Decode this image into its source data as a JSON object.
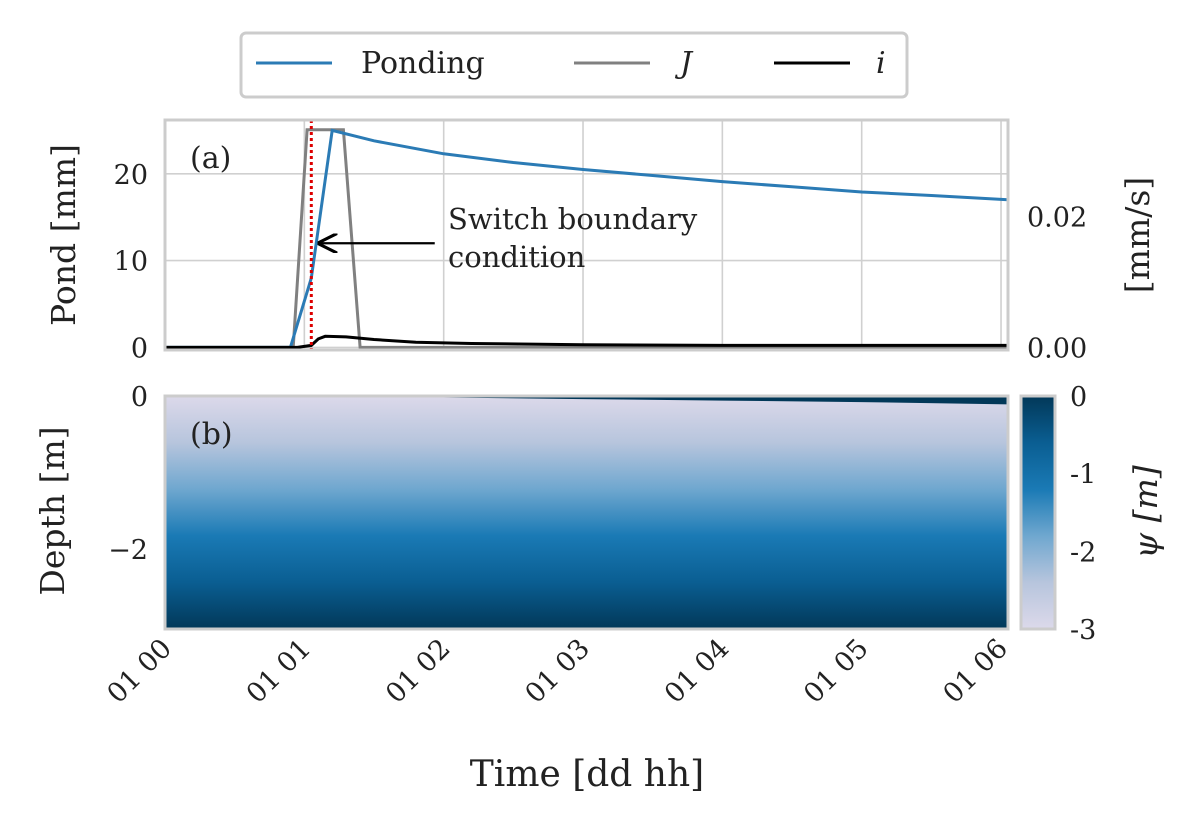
{
  "legend": {
    "items": [
      {
        "label": "Ponding",
        "color": "#2b7bb5",
        "italic": false
      },
      {
        "label": "J",
        "color": "#808080",
        "italic": true
      },
      {
        "label": "i",
        "color": "#000000",
        "italic": true
      }
    ]
  },
  "chart_data": [
    {
      "type": "line",
      "panel_label": "(a)",
      "ylabel": "Pond [mm]",
      "ylabel_right": "[mm/s]",
      "ylim": [
        -0.3,
        26.2
      ],
      "yticks": [
        0,
        10,
        20
      ],
      "ylim_right": [
        -0.0004,
        0.0348
      ],
      "yticks_right": [
        0.0,
        0.02
      ],
      "ytick_labels_right": [
        "0.00",
        "0.02"
      ],
      "grid": true,
      "xlim": [
        0,
        6.05
      ],
      "series": [
        {
          "name": "Ponding",
          "axis": "left",
          "color": "#2b7bb5",
          "x": [
            0,
            0.9,
            1.05,
            1.2,
            1.5,
            2.0,
            2.5,
            3.0,
            3.5,
            4.0,
            4.5,
            5.0,
            5.5,
            6.05
          ],
          "y": [
            0,
            0,
            8,
            25,
            23.8,
            22.3,
            21.3,
            20.5,
            19.8,
            19.1,
            18.5,
            17.9,
            17.5,
            17.0
          ]
        },
        {
          "name": "J",
          "axis": "right",
          "color": "#808080",
          "x": [
            0,
            0.92,
            1.02,
            1.2,
            1.28,
            1.4,
            6.05
          ],
          "y": [
            0,
            0,
            0.0333,
            0.0333,
            0.0333,
            0,
            0
          ]
        },
        {
          "name": "i",
          "axis": "right",
          "color": "#000000",
          "x": [
            0,
            0.95,
            1.05,
            1.1,
            1.15,
            1.3,
            1.5,
            1.8,
            2.2,
            3.0,
            4.0,
            5.0,
            6.05
          ],
          "y": [
            0,
            0,
            0.0003,
            0.0013,
            0.0017,
            0.0016,
            0.0012,
            0.0008,
            0.0006,
            0.0004,
            0.0003,
            0.0003,
            0.0003
          ]
        }
      ],
      "vline": {
        "x": 1.05,
        "color": "#dd0000"
      },
      "annotation": {
        "lines": [
          "Switch boundary",
          "condition"
        ],
        "arrow_to": {
          "x": 1.08,
          "y": 12
        },
        "arrow_from": {
          "x": 1.9,
          "y": 12
        }
      }
    },
    {
      "type": "heatmap",
      "panel_label": "(b)",
      "ylabel": "Depth [m]",
      "xlabel": "Time [dd hh]",
      "xlim": [
        0,
        6.05
      ],
      "ylim": [
        -3.05,
        0
      ],
      "yticks": [
        0,
        -2
      ],
      "ytick_labels": [
        "0",
        "−2"
      ],
      "colorbar": {
        "label": "ψ [m]",
        "range": [
          -3,
          0
        ],
        "ticks": [
          0,
          -1,
          -2,
          -3
        ],
        "tick_labels": [
          "0",
          "-1",
          "-2",
          "-3"
        ],
        "colors": [
          "#dcd9ea",
          "#b7c5dd",
          "#6fa7cf",
          "#1a7ab5",
          "#0a5e92",
          "#023858"
        ]
      },
      "wetting_front": {
        "x": [
          1.3,
          2,
          3,
          4,
          5,
          6.05
        ],
        "depth": [
          0,
          0.02,
          0.04,
          0.06,
          0.08,
          0.11
        ]
      },
      "xticks": [
        0,
        1,
        2,
        3,
        4,
        5,
        6
      ],
      "xtick_labels": [
        "01 00",
        "01 01",
        "01 02",
        "01 03",
        "01 04",
        "01 05",
        "01 06"
      ]
    }
  ]
}
